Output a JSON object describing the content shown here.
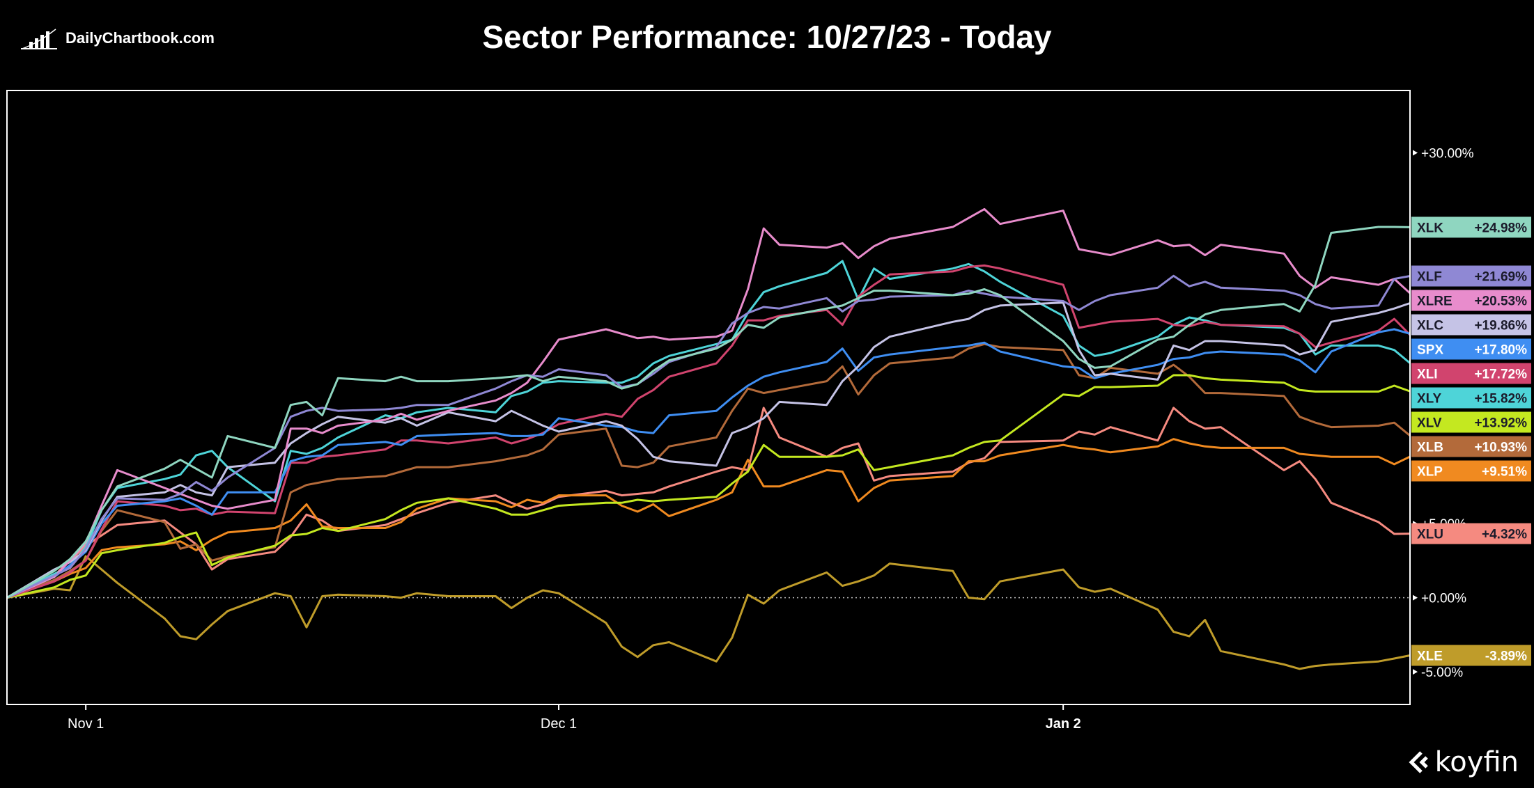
{
  "brand": {
    "name": "DailyChartbook.com",
    "icon": "bar-chart-logo"
  },
  "footer": {
    "logo_text": "koyfin",
    "icon": "koyfin-chevron"
  },
  "colors": {
    "background": "#000000",
    "frame": "#ffffff",
    "zero_line": "#bbbbbb"
  },
  "chart_data": {
    "type": "line",
    "title": "Sector Performance: 10/27/23 - Today",
    "xlabel": "",
    "ylabel": "",
    "x_range": [
      "2023-10-27",
      "2024-01-24"
    ],
    "x_ticks": [
      {
        "date": "2023-11-01",
        "label": "Nov 1"
      },
      {
        "date": "2023-12-01",
        "label": "Dec 1"
      },
      {
        "date": "2024-01-02",
        "label": "Jan 2"
      }
    ],
    "y_unit": "percent",
    "ylim": [
      -7.2,
      34.2
    ],
    "y_ticks": [
      {
        "value": 30,
        "label": "+30.00%"
      },
      {
        "value": 5,
        "label": "+5.00%"
      },
      {
        "value": 0,
        "label": "+0.00%"
      },
      {
        "value": -5,
        "label": "-5.00%"
      }
    ],
    "zero_line": {
      "value": 0,
      "style": "dotted"
    },
    "grid": false,
    "legend": "right-edge end labels",
    "dates": [
      "2023-10-27",
      "2023-10-30",
      "2023-10-31",
      "2023-11-01",
      "2023-11-02",
      "2023-11-03",
      "2023-11-06",
      "2023-11-07",
      "2023-11-08",
      "2023-11-09",
      "2023-11-10",
      "2023-11-13",
      "2023-11-14",
      "2023-11-15",
      "2023-11-16",
      "2023-11-17",
      "2023-11-20",
      "2023-11-21",
      "2023-11-22",
      "2023-11-24",
      "2023-11-27",
      "2023-11-28",
      "2023-11-29",
      "2023-11-30",
      "2023-12-01",
      "2023-12-04",
      "2023-12-05",
      "2023-12-06",
      "2023-12-07",
      "2023-12-08",
      "2023-12-11",
      "2023-12-12",
      "2023-12-13",
      "2023-12-14",
      "2023-12-15",
      "2023-12-18",
      "2023-12-19",
      "2023-12-20",
      "2023-12-21",
      "2023-12-22",
      "2023-12-26",
      "2023-12-27",
      "2023-12-28",
      "2023-12-29",
      "2024-01-02",
      "2024-01-03",
      "2024-01-04",
      "2024-01-05",
      "2024-01-08",
      "2024-01-09",
      "2024-01-10",
      "2024-01-11",
      "2024-01-12",
      "2024-01-16",
      "2024-01-17",
      "2024-01-18",
      "2024-01-19",
      "2024-01-22",
      "2024-01-23",
      "2024-01-24"
    ],
    "series": [
      {
        "name": "XLK",
        "end_label": "+24.98%",
        "color": "#8fd6c0",
        "values": [
          0,
          1.8,
          2.6,
          3.8,
          5.9,
          7.5,
          8.7,
          9.3,
          8.7,
          8.1,
          10.9,
          10.1,
          13.0,
          13.2,
          12.3,
          14.8,
          14.6,
          14.9,
          14.6,
          14.6,
          14.8,
          14.9,
          15.0,
          14.6,
          14.9,
          14.6,
          14.1,
          14.4,
          15.3,
          16.0,
          16.8,
          17.4,
          18.4,
          18.2,
          18.9,
          19.5,
          19.7,
          20.2,
          20.7,
          20.7,
          20.4,
          20.5,
          20.8,
          20.4,
          17.3,
          16.1,
          15.5,
          15.6,
          17.4,
          17.6,
          18.4,
          19.1,
          19.4,
          19.8,
          19.3,
          21.1,
          24.6,
          25.0,
          25.0,
          24.98
        ]
      },
      {
        "name": "XLF",
        "end_label": "+21.69%",
        "color": "#8f88d4",
        "values": [
          0,
          1.5,
          2.0,
          3.3,
          5.3,
          6.7,
          6.6,
          7.0,
          7.8,
          7.2,
          8.1,
          10.1,
          12.2,
          12.6,
          12.8,
          12.6,
          12.7,
          12.8,
          13.0,
          13.0,
          14.1,
          14.6,
          15.0,
          14.9,
          15.4,
          15.0,
          14.2,
          14.4,
          15.1,
          15.9,
          16.9,
          18.5,
          19.2,
          19.6,
          19.5,
          20.2,
          19.3,
          20.0,
          20.1,
          20.3,
          20.4,
          20.7,
          20.5,
          20.3,
          20.0,
          19.4,
          20.0,
          20.4,
          20.9,
          21.7,
          21.0,
          21.3,
          20.9,
          20.7,
          20.4,
          19.8,
          19.5,
          19.7,
          21.5,
          21.69
        ]
      },
      {
        "name": "XLRE",
        "end_label": "+20.53%",
        "color": "#e88ccc",
        "values": [
          0,
          1.4,
          2.5,
          3.7,
          6.2,
          8.6,
          7.4,
          7.0,
          6.6,
          6.2,
          6.0,
          6.6,
          11.4,
          11.4,
          11.1,
          11.6,
          12.0,
          12.4,
          12.0,
          12.6,
          13.3,
          13.8,
          14.5,
          15.9,
          17.4,
          18.1,
          17.8,
          17.5,
          17.6,
          17.4,
          17.6,
          18.0,
          20.8,
          24.9,
          23.8,
          23.6,
          23.9,
          22.9,
          23.7,
          24.2,
          25.0,
          25.6,
          26.2,
          25.2,
          26.1,
          23.5,
          23.3,
          23.1,
          24.1,
          23.7,
          23.8,
          23.1,
          23.8,
          23.2,
          21.7,
          20.9,
          21.6,
          21.1,
          21.5,
          20.53
        ]
      },
      {
        "name": "XLC",
        "end_label": "+19.86%",
        "color": "#c5c3e6",
        "values": [
          0,
          1.9,
          2.4,
          3.2,
          5.2,
          6.8,
          7.1,
          7.6,
          7.1,
          6.9,
          8.8,
          9.1,
          10.4,
          11.1,
          11.7,
          12.2,
          11.8,
          12.1,
          11.6,
          12.5,
          11.9,
          12.6,
          12.1,
          11.6,
          11.2,
          11.9,
          11.6,
          10.7,
          9.5,
          9.2,
          8.9,
          11.1,
          11.5,
          12.1,
          13.2,
          13.0,
          14.6,
          15.6,
          16.9,
          17.6,
          18.6,
          18.8,
          19.4,
          19.7,
          19.9,
          16.7,
          15.0,
          15.1,
          14.7,
          17.0,
          16.7,
          17.3,
          17.3,
          17.0,
          16.4,
          16.7,
          18.6,
          19.2,
          19.5,
          19.86
        ]
      },
      {
        "name": "SPX",
        "end_label": "+17.80%",
        "color": "#3f8ef2",
        "values": [
          0,
          1.4,
          2.2,
          3.1,
          5.0,
          6.2,
          6.5,
          6.7,
          6.2,
          5.6,
          7.1,
          7.1,
          9.2,
          9.5,
          9.6,
          10.3,
          10.5,
          10.3,
          10.9,
          11.0,
          11.1,
          10.9,
          10.9,
          11.0,
          12.1,
          11.6,
          11.5,
          11.2,
          11.1,
          12.3,
          12.6,
          13.5,
          14.3,
          14.9,
          15.2,
          15.9,
          16.8,
          15.3,
          16.2,
          16.4,
          16.9,
          17.0,
          17.2,
          16.6,
          15.6,
          15.5,
          14.8,
          15.1,
          15.7,
          16.1,
          16.2,
          16.5,
          16.6,
          16.4,
          16.0,
          15.2,
          16.6,
          17.9,
          18.1,
          17.8
        ]
      },
      {
        "name": "XLI",
        "end_label": "+17.72%",
        "color": "#d1446e",
        "values": [
          0,
          1.1,
          1.7,
          2.5,
          4.6,
          6.5,
          6.2,
          5.9,
          6.0,
          5.6,
          5.8,
          5.7,
          9.1,
          9.1,
          9.5,
          9.6,
          10.0,
          10.6,
          10.6,
          10.4,
          10.8,
          10.4,
          10.7,
          11.1,
          11.7,
          12.4,
          12.2,
          13.4,
          14.0,
          14.9,
          15.8,
          17.0,
          18.7,
          18.7,
          19.0,
          19.4,
          18.4,
          20.3,
          21.1,
          21.8,
          22.0,
          22.3,
          22.4,
          22.2,
          21.1,
          18.2,
          18.4,
          18.6,
          18.8,
          18.4,
          18.3,
          18.6,
          18.4,
          18.3,
          17.8,
          16.9,
          17.2,
          18.0,
          18.8,
          17.72
        ]
      },
      {
        "name": "XLY",
        "end_label": "+15.82%",
        "color": "#4ed4d8",
        "values": [
          0,
          1.6,
          2.1,
          3.4,
          5.9,
          7.4,
          8.0,
          8.3,
          9.6,
          9.9,
          8.8,
          6.5,
          9.9,
          9.7,
          10.1,
          10.8,
          12.3,
          12.1,
          12.5,
          12.8,
          12.5,
          13.6,
          13.9,
          14.5,
          14.6,
          14.5,
          14.5,
          14.9,
          15.8,
          16.3,
          17.1,
          17.4,
          19.2,
          20.6,
          21.0,
          21.9,
          22.7,
          20.1,
          22.2,
          21.5,
          22.2,
          22.5,
          22.0,
          21.3,
          19.0,
          17.0,
          16.3,
          16.5,
          17.6,
          18.4,
          18.9,
          18.7,
          18.4,
          18.2,
          17.8,
          16.4,
          17.0,
          17.0,
          16.7,
          15.82
        ]
      },
      {
        "name": "XLV",
        "end_label": "+13.92%",
        "color": "#c4e820",
        "values": [
          0,
          0.7,
          1.2,
          1.5,
          3.0,
          3.2,
          3.7,
          4.1,
          4.4,
          2.2,
          2.7,
          3.5,
          4.2,
          4.3,
          4.7,
          4.5,
          5.3,
          5.9,
          6.4,
          6.7,
          6.0,
          5.6,
          5.6,
          5.9,
          6.2,
          6.4,
          6.4,
          6.6,
          6.5,
          6.6,
          6.8,
          7.7,
          8.5,
          10.3,
          9.5,
          9.5,
          9.6,
          10.0,
          8.6,
          8.8,
          9.6,
          10.1,
          10.5,
          10.6,
          13.7,
          13.6,
          14.2,
          14.2,
          14.3,
          15.0,
          15.0,
          14.8,
          14.7,
          14.5,
          14.0,
          13.9,
          13.9,
          13.9,
          14.3,
          13.92
        ]
      },
      {
        "name": "XLB",
        "end_label": "+10.93%",
        "color": "#b36a3a",
        "values": [
          0,
          1.2,
          1.8,
          2.5,
          4.5,
          5.9,
          5.1,
          3.3,
          3.6,
          2.5,
          2.8,
          3.4,
          7.1,
          7.6,
          7.8,
          8.0,
          8.2,
          8.5,
          8.8,
          8.8,
          9.2,
          9.4,
          9.6,
          10.0,
          11.0,
          11.4,
          8.9,
          8.8,
          9.1,
          10.2,
          10.8,
          12.6,
          14.1,
          13.8,
          14.0,
          14.6,
          15.6,
          13.7,
          15.0,
          15.8,
          16.2,
          16.8,
          17.1,
          16.9,
          16.7,
          15.0,
          14.8,
          15.5,
          15.1,
          15.7,
          14.9,
          13.8,
          13.8,
          13.6,
          12.2,
          11.8,
          11.5,
          11.6,
          11.8,
          10.93
        ]
      },
      {
        "name": "XLP",
        "end_label": "+9.51%",
        "color": "#f08a20",
        "values": [
          0,
          1.1,
          1.6,
          2.0,
          3.2,
          3.4,
          3.6,
          3.8,
          3.2,
          3.9,
          4.4,
          4.7,
          5.2,
          6.3,
          4.8,
          4.7,
          4.7,
          5.1,
          6.0,
          6.7,
          6.5,
          6.1,
          6.6,
          6.4,
          6.9,
          6.9,
          6.2,
          5.8,
          6.3,
          5.5,
          6.6,
          7.1,
          9.3,
          7.5,
          7.5,
          8.6,
          8.5,
          6.5,
          7.4,
          7.9,
          8.2,
          9.2,
          9.2,
          9.6,
          10.3,
          10.1,
          10.0,
          9.8,
          10.2,
          10.7,
          10.4,
          10.2,
          10.1,
          10.1,
          9.7,
          9.6,
          9.5,
          9.5,
          9.0,
          9.51
        ]
      },
      {
        "name": "XLU",
        "end_label": "+4.32%",
        "color": "#f58a80",
        "values": [
          0,
          1.5,
          2.5,
          3.5,
          4.2,
          4.9,
          5.2,
          4.4,
          3.6,
          1.9,
          2.6,
          3.1,
          4.1,
          5.6,
          5.2,
          4.5,
          4.9,
          5.3,
          5.7,
          6.4,
          6.9,
          6.4,
          6.0,
          6.3,
          6.8,
          7.2,
          6.9,
          7.0,
          7.1,
          7.5,
          8.5,
          8.8,
          8.6,
          12.8,
          10.8,
          9.5,
          10.1,
          10.4,
          7.9,
          8.2,
          8.5,
          9.1,
          9.4,
          10.5,
          10.6,
          11.2,
          11.0,
          11.5,
          10.6,
          12.8,
          11.9,
          11.4,
          11.5,
          8.6,
          9.2,
          8.0,
          6.4,
          5.1,
          4.3,
          4.32
        ]
      },
      {
        "name": "XLE",
        "end_label": "-3.89%",
        "color": "#bf9c2a",
        "values": [
          0,
          0.6,
          0.5,
          2.8,
          1.9,
          1.0,
          -1.4,
          -2.6,
          -2.8,
          -1.8,
          -0.9,
          0.3,
          0.1,
          -2.0,
          0.1,
          0.2,
          0.1,
          0.0,
          0.3,
          0.1,
          0.1,
          -0.7,
          0,
          0.5,
          0.3,
          -1.7,
          -3.3,
          -4.0,
          -3.2,
          -3.0,
          -4.3,
          -2.7,
          0.2,
          -0.4,
          0.5,
          1.7,
          0.8,
          1.1,
          1.5,
          2.3,
          1.8,
          0.0,
          -0.1,
          1.1,
          1.9,
          0.7,
          0.4,
          0.6,
          -0.8,
          -2.3,
          -2.6,
          -1.5,
          -3.6,
          -4.5,
          -4.8,
          -4.6,
          -4.5,
          -4.3,
          -4.1,
          -3.89
        ]
      }
    ]
  }
}
